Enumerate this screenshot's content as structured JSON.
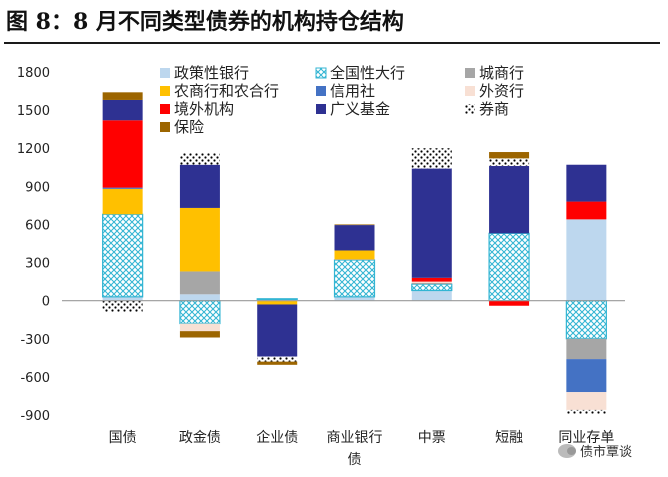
{
  "header": {
    "title": "图 8：8 月不同类型债券的机构持仓结构"
  },
  "watermark": {
    "text": "债市覃谈"
  },
  "chart_data": {
    "type": "bar",
    "stacked": true,
    "categories": [
      "国债",
      "政金债",
      "企业债",
      "商业银行债",
      "中票",
      "短融",
      "同业存单"
    ],
    "ylim": [
      -900,
      1800
    ],
    "yticks": [
      -900,
      -600,
      -300,
      0,
      300,
      600,
      900,
      1200,
      1500,
      1800
    ],
    "grid": false,
    "legend": "top",
    "series": [
      {
        "name": "政策性银行",
        "color": "#bdd7ee",
        "pattern": "solid",
        "values": [
          30,
          50,
          10,
          30,
          80,
          0,
          640
        ]
      },
      {
        "name": "全国性大行",
        "color": "#33b5d3",
        "pattern": "crosshatch",
        "values": [
          650,
          -180,
          5,
          290,
          50,
          530,
          -300
        ]
      },
      {
        "name": "城商行",
        "color": "#a6a6a6",
        "pattern": "solid",
        "values": [
          0,
          180,
          0,
          5,
          10,
          0,
          -160
        ]
      },
      {
        "name": "农商行和农合行",
        "color": "#ffc000",
        "pattern": "solid",
        "values": [
          200,
          500,
          -30,
          70,
          0,
          0,
          0
        ]
      },
      {
        "name": "信用社",
        "color": "#4472c4",
        "pattern": "solid",
        "values": [
          10,
          0,
          0,
          0,
          0,
          0,
          -260
        ]
      },
      {
        "name": "外资行",
        "color": "#f8e0d4",
        "pattern": "solid",
        "values": [
          0,
          -60,
          0,
          0,
          10,
          0,
          -140
        ]
      },
      {
        "name": "境外机构",
        "color": "#ff0000",
        "pattern": "solid",
        "values": [
          530,
          0,
          0,
          0,
          30,
          -40,
          140
        ]
      },
      {
        "name": "广义基金",
        "color": "#2e3192",
        "pattern": "solid",
        "values": [
          160,
          340,
          -410,
          200,
          860,
          530,
          290
        ]
      },
      {
        "name": "券商",
        "color": "#ffffff",
        "pattern": "dots",
        "values": [
          -90,
          90,
          -40,
          0,
          160,
          60,
          -30
        ]
      },
      {
        "name": "保险",
        "color": "#9c6500",
        "pattern": "solid",
        "values": [
          60,
          -50,
          -25,
          5,
          0,
          50,
          0
        ]
      }
    ]
  }
}
